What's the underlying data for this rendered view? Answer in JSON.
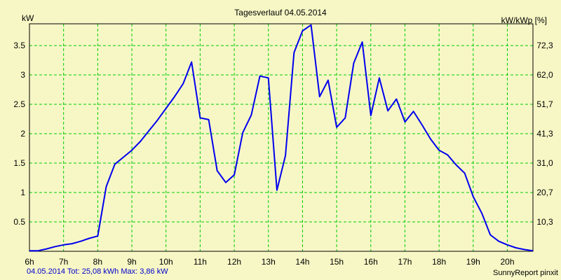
{
  "chart_data": {
    "type": "line",
    "title": "Tagesverlauf 04.05.2014",
    "ylabel_left": "kW",
    "ylabel_right": "kW/kWp [%]",
    "xlabel": "",
    "x_ticks": [
      "6h",
      "7h",
      "8h",
      "9h",
      "10h",
      "11h",
      "12h",
      "13h",
      "14h",
      "15h",
      "16h",
      "17h",
      "18h",
      "19h",
      "20h"
    ],
    "y_ticks_left": [
      "0.5",
      "1",
      "1.5",
      "2",
      "2.5",
      "3",
      "3.5"
    ],
    "y_ticks_right": [
      "10,3",
      "20,7",
      "31,0",
      "41,3",
      "51,7",
      "62,0",
      "72,3"
    ],
    "xlim": [
      6,
      20.75
    ],
    "ylim": [
      0,
      3.87
    ],
    "grid": true,
    "line_color": "#0000ee",
    "grid_color": "#00cc00",
    "series": [
      {
        "x": [
          6.0,
          6.25,
          6.5,
          6.75,
          7.0,
          7.25,
          7.5,
          7.75,
          8.0,
          8.25,
          8.5,
          8.75,
          9.0,
          9.25,
          9.5,
          9.75,
          10.0,
          10.25,
          10.5,
          10.75,
          11.0,
          11.25,
          11.5,
          11.75,
          12.0,
          12.25,
          12.5,
          12.75,
          13.0,
          13.25,
          13.5,
          13.75,
          14.0,
          14.25,
          14.5,
          14.75,
          15.0,
          15.25,
          15.5,
          15.75,
          16.0,
          16.25,
          16.5,
          16.75,
          17.0,
          17.25,
          17.5,
          17.75,
          18.0,
          18.25,
          18.5,
          18.75,
          19.0,
          19.25,
          19.5,
          19.75,
          20.0,
          20.25,
          20.5,
          20.75
        ],
        "y": [
          0.01,
          0.01,
          0.04,
          0.08,
          0.11,
          0.13,
          0.17,
          0.22,
          0.26,
          1.1,
          1.48,
          1.6,
          1.72,
          1.87,
          2.05,
          2.23,
          2.43,
          2.63,
          2.85,
          3.22,
          2.27,
          2.24,
          1.37,
          1.17,
          1.3,
          2.02,
          2.32,
          2.98,
          2.95,
          1.04,
          1.63,
          3.38,
          3.75,
          3.85,
          2.63,
          2.91,
          2.11,
          2.27,
          3.2,
          3.56,
          2.31,
          2.95,
          2.39,
          2.59,
          2.2,
          2.38,
          2.15,
          1.91,
          1.72,
          1.64,
          1.47,
          1.33,
          0.93,
          0.65,
          0.28,
          0.17,
          0.11,
          0.06,
          0.03,
          0.01
        ]
      }
    ]
  },
  "footer": {
    "left": "04.05.2014 Tot: 25,08 kWh Max: 3,86 kW",
    "right": "SunnyReport pinxit"
  }
}
